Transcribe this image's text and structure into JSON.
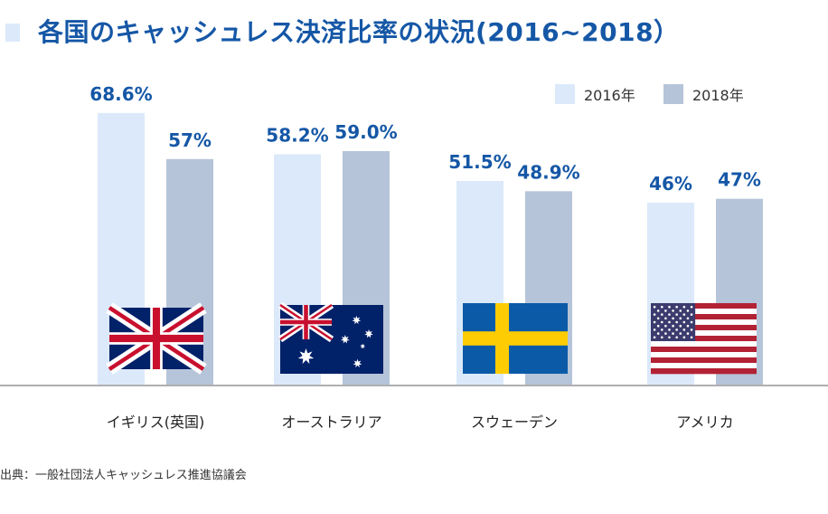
{
  "title": "各国のキャッシュレス決済比率の状況(2016~2018）",
  "source": "出典：一般社団法人キャッシュレス推進協議会",
  "colors": {
    "s2016": "#dbe9fa",
    "s2018": "#b5c4d9",
    "label": "#1557a6",
    "axis": "#b0b0b0"
  },
  "chart_data": {
    "type": "bar",
    "categories": [
      "イギリス(英国)",
      "オーストラリア",
      "スウェーデン",
      "アメリカ"
    ],
    "series": [
      {
        "name": "2016年",
        "values": [
          68.6,
          58.2,
          51.5,
          46
        ],
        "labels": [
          "68.6%",
          "58.2%",
          "51.5%",
          "46%"
        ]
      },
      {
        "name": "2018年",
        "values": [
          57,
          59.0,
          48.9,
          47
        ],
        "labels": [
          "57%",
          "59.0%",
          "48.9%",
          "47%"
        ]
      }
    ],
    "flags": [
      "uk-flag-icon",
      "australia-flag-icon",
      "sweden-flag-icon",
      "usa-flag-icon"
    ],
    "legend_position": "top-right",
    "grid": false
  }
}
